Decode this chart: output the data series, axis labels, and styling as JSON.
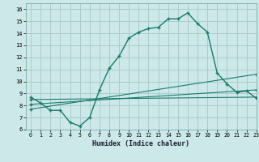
{
  "title": "",
  "xlabel": "Humidex (Indice chaleur)",
  "ylabel": "",
  "bg_color": "#cce8e8",
  "grid_color": "#aacccc",
  "line_color": "#1a7a6e",
  "xlim": [
    -0.5,
    23
  ],
  "ylim": [
    6,
    16.5
  ],
  "yticks": [
    6,
    7,
    8,
    9,
    10,
    11,
    12,
    13,
    14,
    15,
    16
  ],
  "xticks": [
    0,
    1,
    2,
    3,
    4,
    5,
    6,
    7,
    8,
    9,
    10,
    11,
    12,
    13,
    14,
    15,
    16,
    17,
    18,
    19,
    20,
    21,
    22,
    23
  ],
  "line1_x": [
    0,
    1,
    2,
    3,
    4,
    5,
    6,
    7,
    8,
    9,
    10,
    11,
    12,
    13,
    14,
    15,
    16,
    17,
    18,
    19,
    20,
    21,
    22,
    23
  ],
  "line1_y": [
    8.7,
    8.2,
    7.6,
    7.6,
    6.6,
    6.3,
    7.0,
    9.3,
    11.1,
    12.1,
    13.6,
    14.1,
    14.4,
    14.5,
    15.2,
    15.2,
    15.7,
    14.8,
    14.1,
    10.7,
    9.8,
    9.1,
    9.2,
    8.6
  ],
  "line2_x": [
    0,
    23
  ],
  "line2_y": [
    8.5,
    8.7
  ],
  "line3_x": [
    0,
    23
  ],
  "line3_y": [
    8.1,
    9.3
  ],
  "line4_x": [
    0,
    23
  ],
  "line4_y": [
    7.7,
    10.6
  ]
}
